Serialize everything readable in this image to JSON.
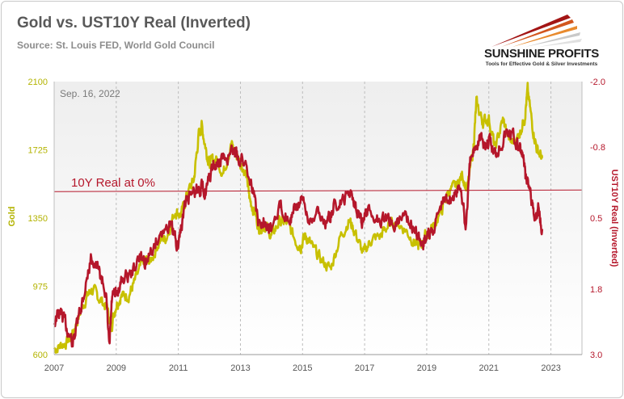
{
  "header": {
    "title": "Gold vs. UST10Y Real (Inverted)",
    "subtitle": "Source: St. Louis FED, World Gold Council"
  },
  "logo": {
    "name": "SUNSHINE PROFITS",
    "tagline": "Tools for Effective Gold & Silver Investments",
    "icon": "sunrise-rays-icon"
  },
  "colors": {
    "gold": "#c8c000",
    "real": "#b5172b",
    "zero_line": "#b5172b",
    "left_axis": "#b3b300",
    "right_axis": "#b5172b",
    "grid": "#bdbdbd",
    "plot_top": "#eeeeee",
    "plot_bottom": "#ffffff"
  },
  "chart_data": {
    "type": "line",
    "date_label": "Sep. 16, 2022",
    "annotation": "10Y Real at 0%",
    "xlim": [
      2007,
      2024
    ],
    "x_ticks": [
      "2007",
      "2009",
      "2011",
      "2013",
      "2015",
      "2017",
      "2019",
      "2021",
      "2023"
    ],
    "grid": "vertical dashed",
    "y_left": {
      "label": "Gold",
      "lim": [
        600,
        2100
      ],
      "ticks": [
        "600",
        "975",
        "1350",
        "1725",
        "2100"
      ]
    },
    "y_right": {
      "label": "UST10Y Real (Inverted)",
      "lim": [
        3.0,
        -2.0
      ],
      "inverted": true,
      "ticks": [
        "3.0",
        "1.8",
        "0.5",
        "-0.8",
        "-2.0"
      ]
    },
    "series": [
      {
        "name": "Gold",
        "axis": "left",
        "x": [
          2007.0,
          2007.25,
          2007.5,
          2007.75,
          2008.0,
          2008.2,
          2008.45,
          2008.7,
          2008.83,
          2009.0,
          2009.15,
          2009.4,
          2009.6,
          2009.9,
          2010.1,
          2010.4,
          2010.6,
          2010.9,
          2011.1,
          2011.3,
          2011.5,
          2011.65,
          2011.75,
          2011.9,
          2012.0,
          2012.2,
          2012.45,
          2012.7,
          2012.85,
          2013.0,
          2013.2,
          2013.3,
          2013.45,
          2013.6,
          2013.8,
          2014.0,
          2014.25,
          2014.5,
          2014.8,
          2014.95,
          2015.1,
          2015.3,
          2015.6,
          2015.9,
          2016.2,
          2016.5,
          2016.7,
          2016.95,
          2017.2,
          2017.5,
          2017.7,
          2018.0,
          2018.3,
          2018.6,
          2018.75,
          2018.95,
          2019.2,
          2019.5,
          2019.7,
          2019.95,
          2020.15,
          2020.3,
          2020.5,
          2020.6,
          2020.8,
          2021.0,
          2021.2,
          2021.45,
          2021.7,
          2021.95,
          2022.15,
          2022.25,
          2022.4,
          2022.55,
          2022.72
        ],
        "values": [
          630,
          655,
          680,
          790,
          900,
          960,
          910,
          860,
          750,
          880,
          920,
          930,
          1000,
          1120,
          1110,
          1230,
          1240,
          1390,
          1370,
          1490,
          1560,
          1800,
          1860,
          1720,
          1650,
          1680,
          1600,
          1760,
          1700,
          1660,
          1580,
          1450,
          1390,
          1300,
          1310,
          1250,
          1330,
          1320,
          1220,
          1200,
          1260,
          1190,
          1120,
          1070,
          1240,
          1340,
          1270,
          1150,
          1230,
          1250,
          1300,
          1330,
          1290,
          1220,
          1190,
          1250,
          1300,
          1400,
          1500,
          1520,
          1590,
          1500,
          1730,
          1980,
          1880,
          1900,
          1730,
          1890,
          1760,
          1800,
          1900,
          2050,
          1860,
          1730,
          1680
        ]
      },
      {
        "name": "UST10Y Real",
        "axis": "right",
        "x": [
          2007.0,
          2007.2,
          2007.4,
          2007.6,
          2007.8,
          2007.95,
          2008.2,
          2008.45,
          2008.65,
          2008.78,
          2008.86,
          2009.0,
          2009.2,
          2009.5,
          2009.8,
          2010.0,
          2010.3,
          2010.7,
          2010.85,
          2011.0,
          2011.2,
          2011.4,
          2011.6,
          2011.75,
          2011.9,
          2012.1,
          2012.3,
          2012.5,
          2012.8,
          2012.95,
          2013.2,
          2013.45,
          2013.6,
          2013.8,
          2014.0,
          2014.3,
          2014.6,
          2014.8,
          2015.0,
          2015.2,
          2015.5,
          2015.8,
          2016.0,
          2016.3,
          2016.55,
          2016.75,
          2016.9,
          2017.1,
          2017.4,
          2017.7,
          2018.0,
          2018.3,
          2018.6,
          2018.85,
          2018.95,
          2019.2,
          2019.5,
          2019.7,
          2019.9,
          2020.1,
          2020.25,
          2020.4,
          2020.6,
          2020.75,
          2020.9,
          2021.0,
          2021.2,
          2021.4,
          2021.6,
          2021.8,
          2021.95,
          2022.1,
          2022.2,
          2022.35,
          2022.45,
          2022.6,
          2022.72
        ],
        "values": [
          2.4,
          2.2,
          2.5,
          2.8,
          2.3,
          1.9,
          1.2,
          1.5,
          1.8,
          2.9,
          2.0,
          1.9,
          1.6,
          1.5,
          1.2,
          1.3,
          0.9,
          0.6,
          0.8,
          1.0,
          0.3,
          0.0,
          0.0,
          -0.1,
          0.0,
          -0.4,
          -0.5,
          -0.6,
          -0.7,
          -0.6,
          -0.5,
          0.1,
          0.6,
          0.5,
          0.7,
          0.3,
          0.5,
          0.3,
          0.2,
          0.5,
          0.4,
          0.6,
          0.3,
          0.2,
          0.0,
          0.3,
          0.6,
          0.4,
          0.5,
          0.5,
          0.6,
          0.4,
          0.7,
          1.0,
          0.9,
          0.7,
          0.2,
          0.1,
          0.1,
          -0.1,
          0.7,
          -0.5,
          -0.9,
          -1.0,
          -0.8,
          -0.9,
          -0.7,
          -0.9,
          -1.1,
          -1.0,
          -0.8,
          -0.6,
          -0.2,
          0.0,
          0.5,
          0.3,
          0.7
        ]
      }
    ],
    "reference_line": {
      "axis": "right",
      "value": 0.0
    }
  }
}
